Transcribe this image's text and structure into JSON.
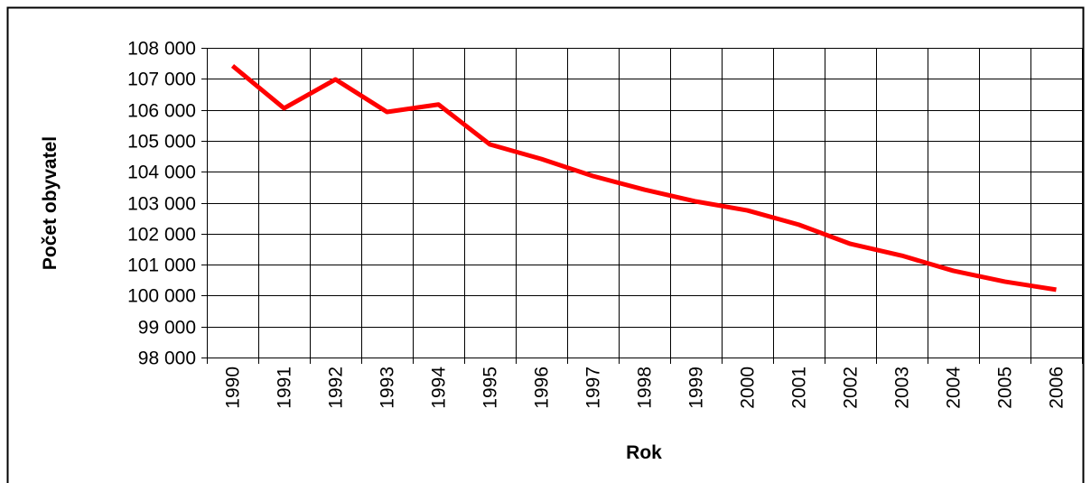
{
  "chart_data": {
    "type": "line",
    "x_label": "Rok",
    "y_label": "Počet obyvatel",
    "categories": [
      "1990",
      "1991",
      "1992",
      "1993",
      "1994",
      "1995",
      "1996",
      "1997",
      "1998",
      "1999",
      "2000",
      "2001",
      "2002",
      "2003",
      "2004",
      "2005",
      "2006"
    ],
    "series": [
      {
        "name": "Počet obyvatel",
        "color": "#ff0000",
        "values": [
          107420,
          106050,
          106980,
          105930,
          106170,
          104880,
          104410,
          103860,
          103420,
          103040,
          102750,
          102290,
          101670,
          101290,
          100800,
          100450,
          100190
        ]
      }
    ],
    "ylim": [
      98000,
      108000
    ],
    "yticks": [
      {
        "value": 98000,
        "label": "98 000"
      },
      {
        "value": 99000,
        "label": "99 000"
      },
      {
        "value": 100000,
        "label": "100 000"
      },
      {
        "value": 101000,
        "label": "101 000"
      },
      {
        "value": 102000,
        "label": "102 000"
      },
      {
        "value": 103000,
        "label": "103 000"
      },
      {
        "value": 104000,
        "label": "104 000"
      },
      {
        "value": 105000,
        "label": "105 000"
      },
      {
        "value": 106000,
        "label": "106 000"
      },
      {
        "value": 107000,
        "label": "107 000"
      },
      {
        "value": 108000,
        "label": "108 000"
      }
    ],
    "grid": true
  }
}
